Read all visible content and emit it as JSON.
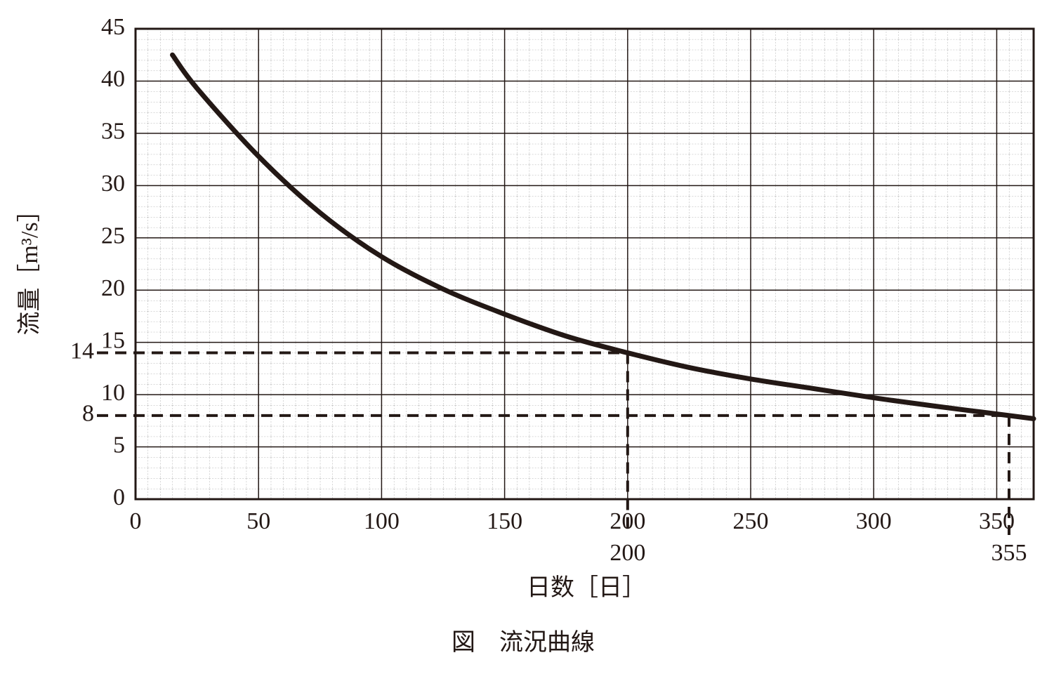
{
  "chart_data": {
    "type": "line",
    "caption": "図　流況曲線",
    "x_label": "日数［日］",
    "y_label": "流量［m³/s］",
    "x": [
      15,
      25,
      50,
      75,
      100,
      125,
      150,
      175,
      200,
      225,
      250,
      275,
      300,
      325,
      355,
      365
    ],
    "series": [
      {
        "name": "流況曲線",
        "color": "#231815",
        "values": [
          42.5,
          39.3,
          32.8,
          27.4,
          23.2,
          20.1,
          17.7,
          15.6,
          14,
          12.6,
          11.5,
          10.6,
          9.7,
          8.9,
          8,
          7.7
        ]
      }
    ],
    "xlim": [
      0,
      365
    ],
    "ylim": [
      0,
      45
    ],
    "xticks": [
      0,
      50,
      100,
      150,
      200,
      250,
      300,
      350
    ],
    "yticks": [
      0,
      5,
      10,
      15,
      20,
      25,
      30,
      35,
      40,
      45
    ],
    "grid": true,
    "reference_lines": [
      {
        "x": 200,
        "y": 14
      },
      {
        "x": 355,
        "y": 8
      }
    ]
  }
}
